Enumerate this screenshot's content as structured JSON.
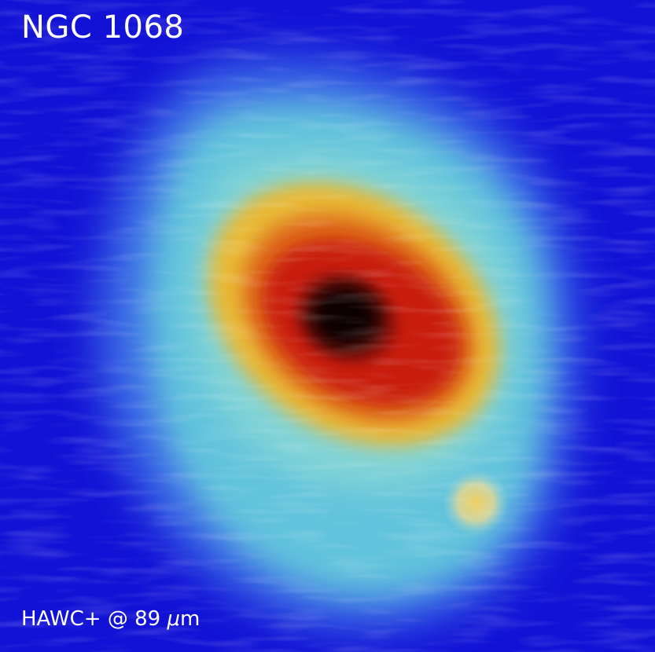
{
  "image": {
    "title": "NGC 1068",
    "caption_prefix": "HAWC+ @ 89 ",
    "caption_unit_symbol": "μ",
    "caption_unit_suffix": "m"
  },
  "colors": {
    "background": "#1212d6",
    "halo_outer": "#3a6ee8",
    "halo_mid": "#5fc8dc",
    "ring_yellow": "#e9b530",
    "ring_orange": "#e07020",
    "core_red": "#c81e10",
    "nucleus": "#1a0505",
    "label_text": "#ffffff"
  }
}
